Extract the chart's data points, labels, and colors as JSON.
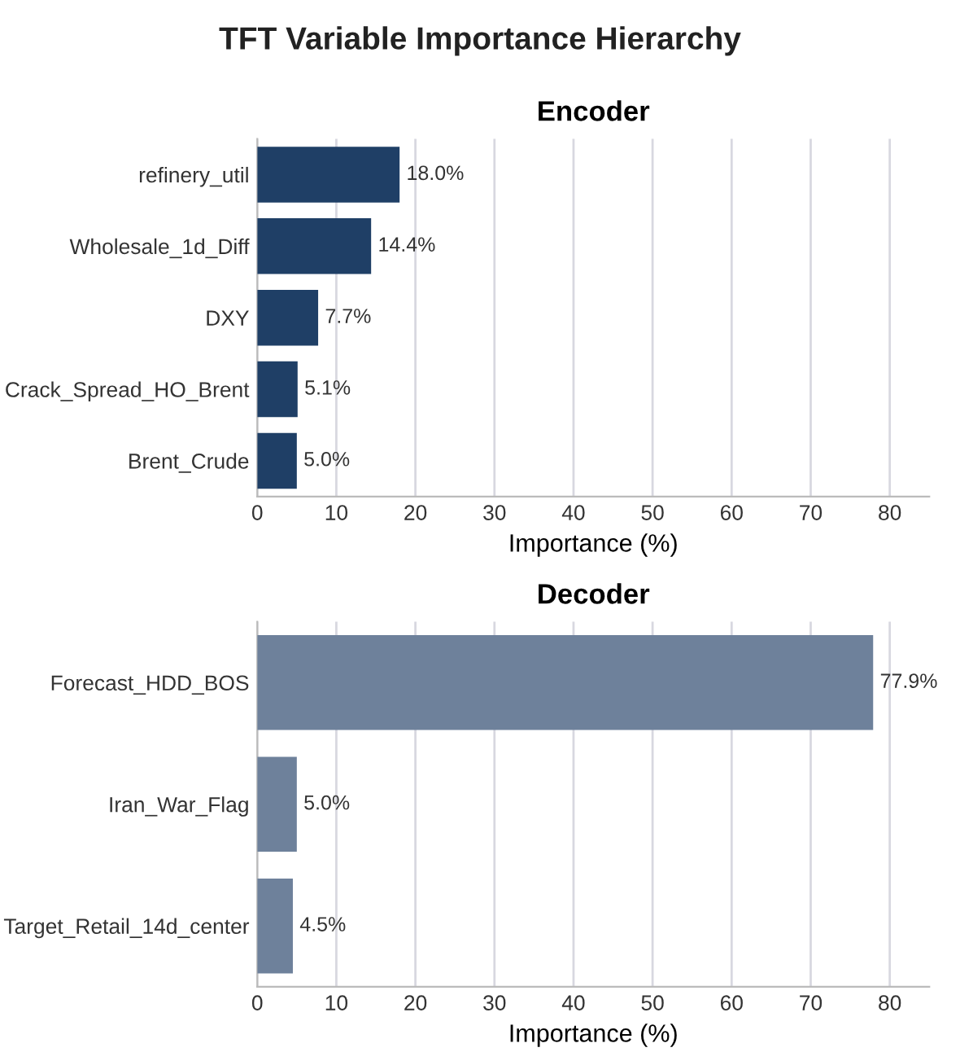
{
  "chart_data": [
    {
      "type": "bar",
      "title": "Encoder",
      "orientation": "horizontal",
      "categories": [
        "refinery_util",
        "Wholesale_1d_Diff",
        "DXY",
        "Crack_Spread_HO_Brent",
        "Brent_Crude"
      ],
      "series": [
        {
          "color": "#1f3f66",
          "values": [
            18.0,
            14.4,
            7.7,
            5.1,
            5.0
          ],
          "value_labels": [
            "18.0%",
            "14.4%",
            "7.7%",
            "5.1%",
            "5.0%"
          ]
        }
      ],
      "xlabel": "Importance (%)",
      "xlim": [
        0,
        85
      ],
      "xticks": [
        0,
        10,
        20,
        30,
        40,
        50,
        60,
        70,
        80
      ],
      "grid": "x"
    },
    {
      "type": "bar",
      "title": "Decoder",
      "orientation": "horizontal",
      "categories": [
        "Forecast_HDD_BOS",
        "Iran_War_Flag",
        "Target_Retail_14d_center"
      ],
      "series": [
        {
          "color": "#6e819b",
          "values": [
            77.9,
            5.0,
            4.5
          ],
          "value_labels": [
            "77.9%",
            "5.0%",
            "4.5%"
          ]
        }
      ],
      "xlabel": "Importance (%)",
      "xlim": [
        0,
        85
      ],
      "xticks": [
        0,
        10,
        20,
        30,
        40,
        50,
        60,
        70,
        80
      ],
      "grid": "x",
      "annotations": [
        "TFT Variable Importance Hierarchy"
      ]
    }
  ]
}
